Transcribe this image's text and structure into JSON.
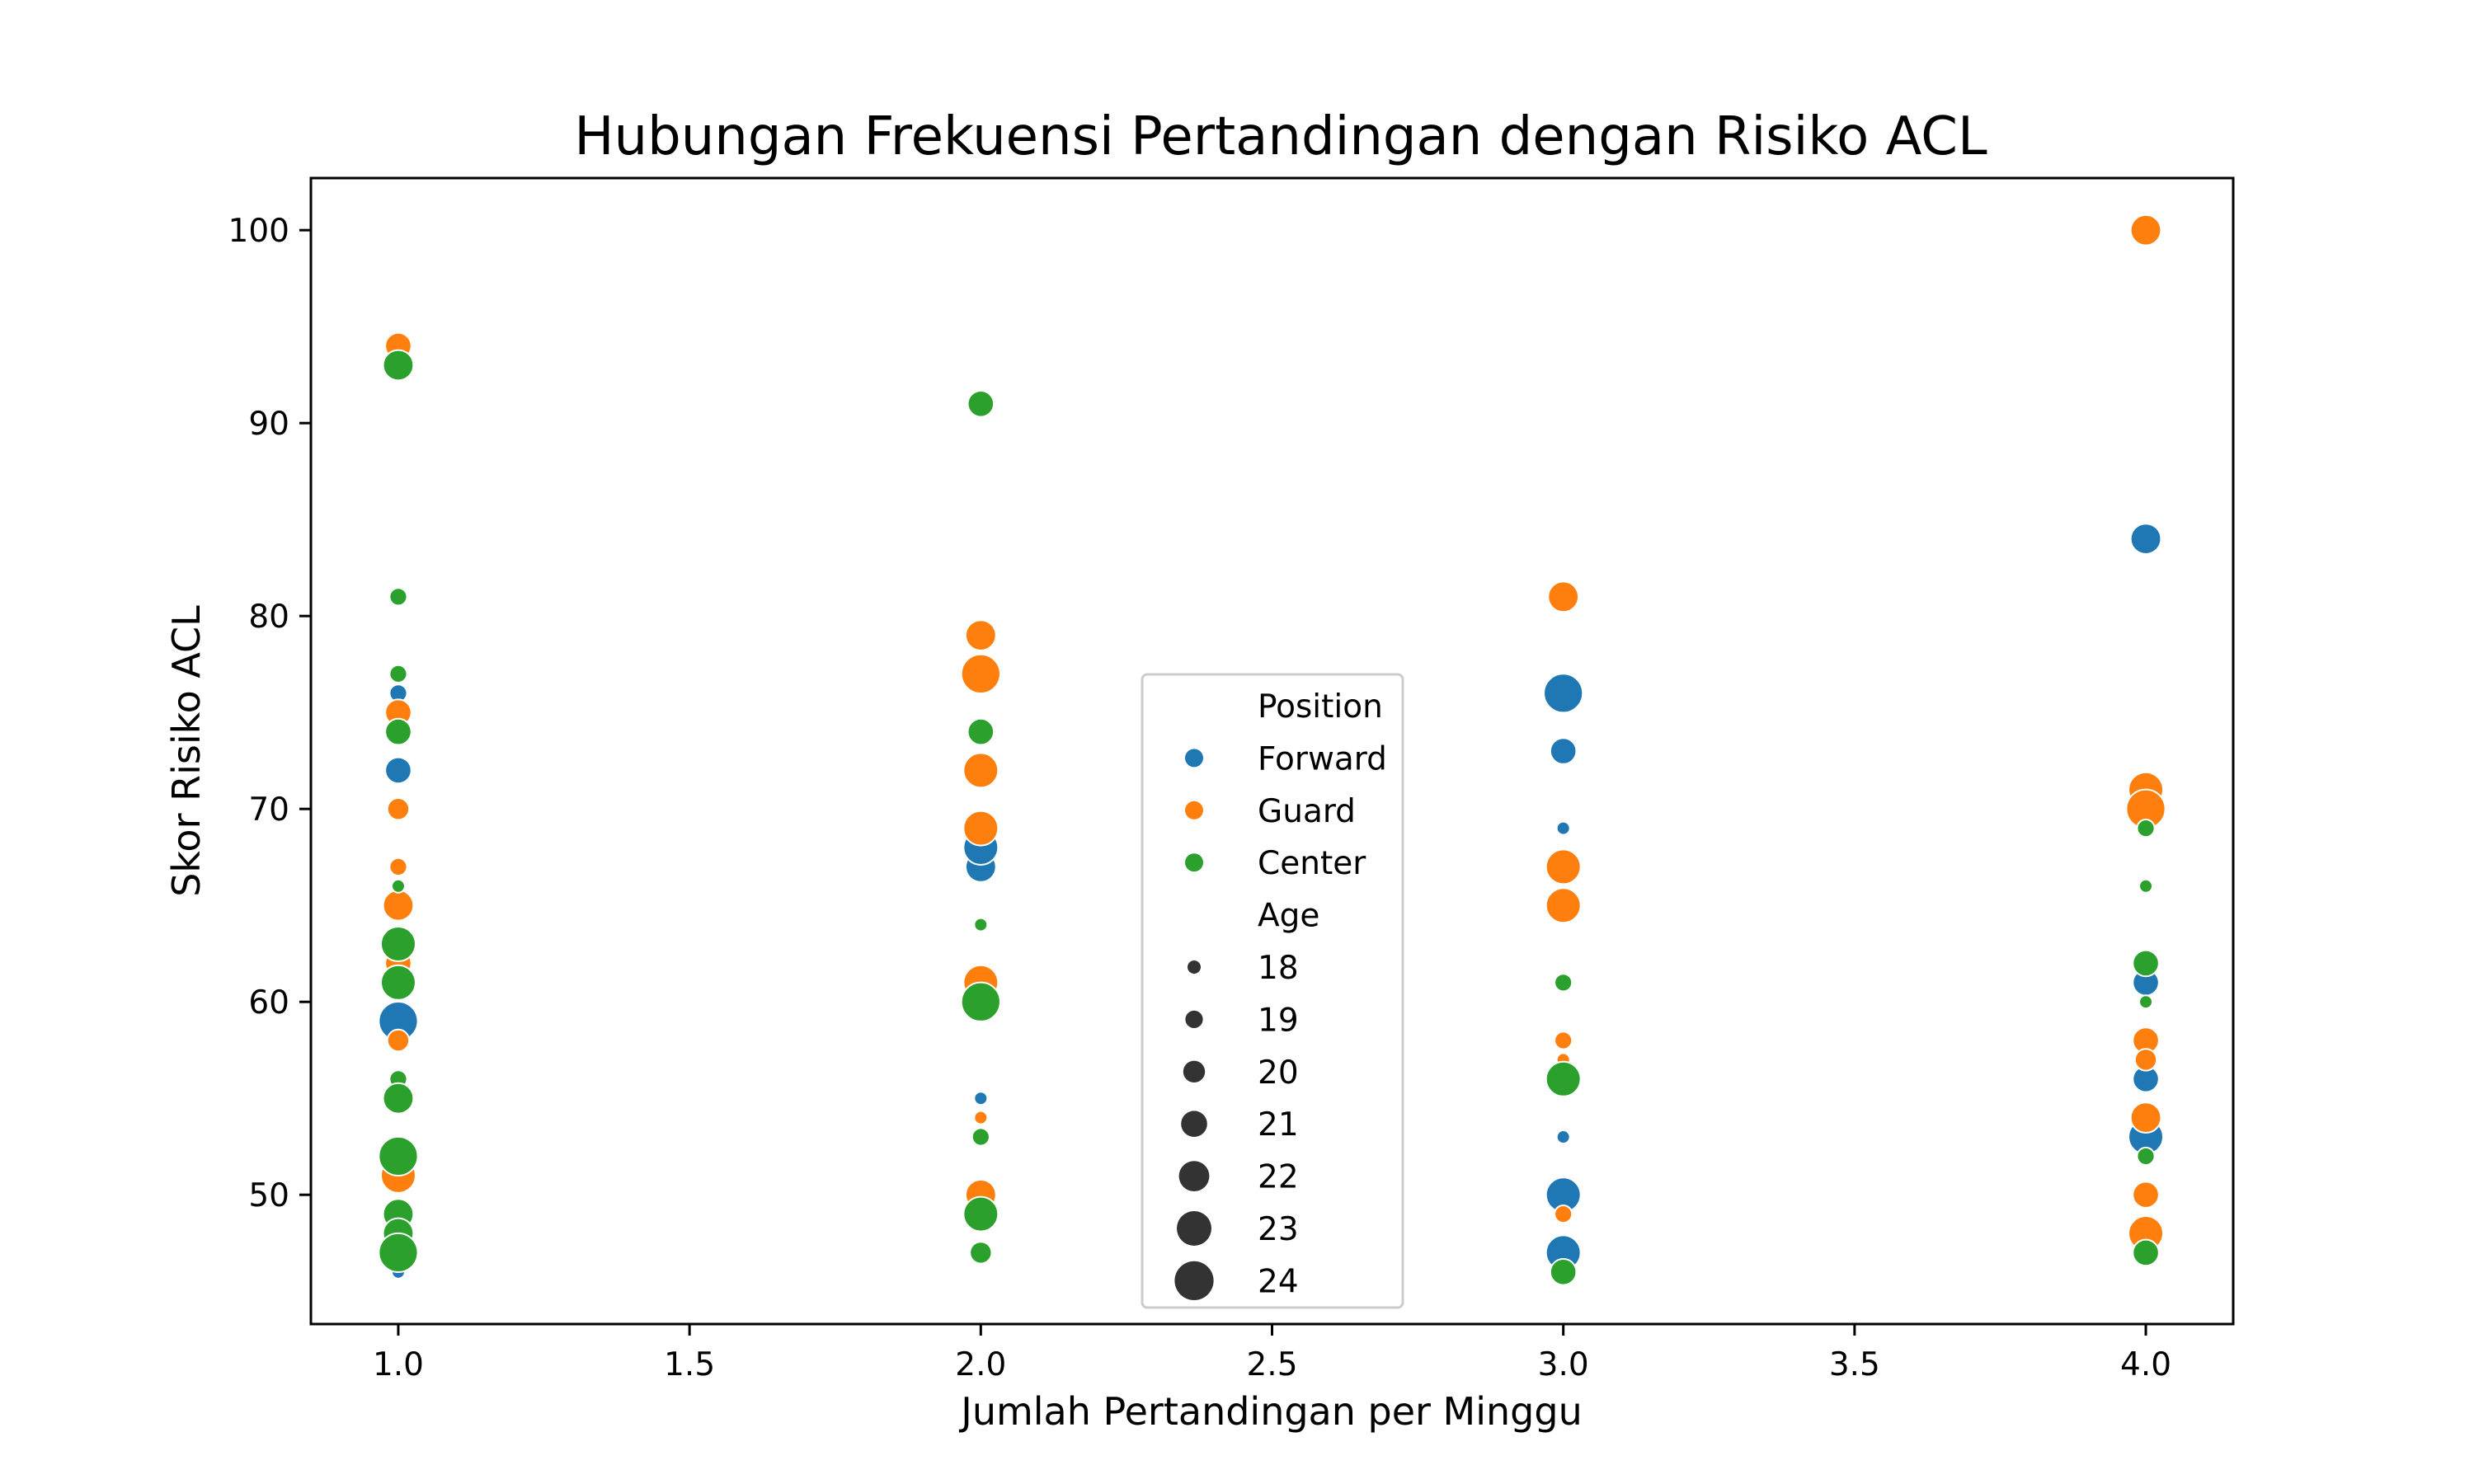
{
  "chart_data": {
    "type": "scatter",
    "title": "Hubungan Frekuensi Pertandingan dengan Risiko ACL",
    "xlabel": "Jumlah Pertandingan per Minggu",
    "ylabel": "Skor Risiko ACL",
    "xlim": [
      0.85,
      4.15
    ],
    "ylim": [
      43.3,
      102.7
    ],
    "xticks": [
      1.0,
      1.5,
      2.0,
      2.5,
      3.0,
      3.5,
      4.0
    ],
    "xtick_labels": [
      "1.0",
      "1.5",
      "2.0",
      "2.5",
      "3.0",
      "3.5",
      "4.0"
    ],
    "yticks": [
      50,
      60,
      70,
      80,
      90,
      100
    ],
    "ytick_labels": [
      "50",
      "60",
      "70",
      "80",
      "90",
      "100"
    ],
    "grid": false,
    "legend": {
      "placement": "center",
      "hue_title": "Position",
      "size_title": "Age",
      "hue_entries": [
        {
          "label": "Forward",
          "color": "#1f77b4"
        },
        {
          "label": "Guard",
          "color": "#ff7f0e"
        },
        {
          "label": "Center",
          "color": "#2ca02c"
        }
      ],
      "size_entries": [
        "18",
        "19",
        "20",
        "21",
        "22",
        "23",
        "24"
      ]
    },
    "series": [
      {
        "name": "Forward",
        "color": "#1f77b4",
        "points": [
          {
            "x": 1,
            "y": 46,
            "age": 18
          },
          {
            "x": 1,
            "y": 62,
            "age": 18
          },
          {
            "x": 1,
            "y": 76,
            "age": 19
          },
          {
            "x": 1,
            "y": 72,
            "age": 21
          },
          {
            "x": 1,
            "y": 59,
            "age": 24
          },
          {
            "x": 2,
            "y": 55,
            "age": 18
          },
          {
            "x": 2,
            "y": 67,
            "age": 22
          },
          {
            "x": 2,
            "y": 68,
            "age": 23
          },
          {
            "x": 3,
            "y": 69,
            "age": 18
          },
          {
            "x": 3,
            "y": 53,
            "age": 18
          },
          {
            "x": 3,
            "y": 73,
            "age": 21
          },
          {
            "x": 3,
            "y": 50,
            "age": 23
          },
          {
            "x": 3,
            "y": 76,
            "age": 24
          },
          {
            "x": 3,
            "y": 47,
            "age": 23
          },
          {
            "x": 4,
            "y": 84,
            "age": 22
          },
          {
            "x": 4,
            "y": 61,
            "age": 21
          },
          {
            "x": 4,
            "y": 56,
            "age": 21
          },
          {
            "x": 4,
            "y": 53,
            "age": 23
          },
          {
            "x": 4,
            "y": 50,
            "age": 19
          }
        ]
      },
      {
        "name": "Guard",
        "color": "#ff7f0e",
        "points": [
          {
            "x": 1,
            "y": 94,
            "age": 21
          },
          {
            "x": 1,
            "y": 75,
            "age": 21
          },
          {
            "x": 1,
            "y": 70,
            "age": 20
          },
          {
            "x": 1,
            "y": 67,
            "age": 19
          },
          {
            "x": 1,
            "y": 65,
            "age": 22
          },
          {
            "x": 1,
            "y": 62,
            "age": 21
          },
          {
            "x": 1,
            "y": 58,
            "age": 20
          },
          {
            "x": 1,
            "y": 51,
            "age": 23
          },
          {
            "x": 2,
            "y": 79,
            "age": 22
          },
          {
            "x": 2,
            "y": 77,
            "age": 24
          },
          {
            "x": 2,
            "y": 72,
            "age": 23
          },
          {
            "x": 2,
            "y": 69,
            "age": 23
          },
          {
            "x": 2,
            "y": 61,
            "age": 23
          },
          {
            "x": 2,
            "y": 54,
            "age": 18
          },
          {
            "x": 2,
            "y": 50,
            "age": 22
          },
          {
            "x": 3,
            "y": 81,
            "age": 22
          },
          {
            "x": 3,
            "y": 67,
            "age": 23
          },
          {
            "x": 3,
            "y": 65,
            "age": 23
          },
          {
            "x": 3,
            "y": 58,
            "age": 19
          },
          {
            "x": 3,
            "y": 57,
            "age": 18
          },
          {
            "x": 3,
            "y": 49,
            "age": 19
          },
          {
            "x": 4,
            "y": 100,
            "age": 22
          },
          {
            "x": 4,
            "y": 71,
            "age": 23
          },
          {
            "x": 4,
            "y": 70,
            "age": 24
          },
          {
            "x": 4,
            "y": 58,
            "age": 21
          },
          {
            "x": 4,
            "y": 57,
            "age": 20
          },
          {
            "x": 4,
            "y": 54,
            "age": 22
          },
          {
            "x": 4,
            "y": 50,
            "age": 21
          },
          {
            "x": 4,
            "y": 48,
            "age": 23
          }
        ]
      },
      {
        "name": "Center",
        "color": "#2ca02c",
        "points": [
          {
            "x": 1,
            "y": 93,
            "age": 22
          },
          {
            "x": 1,
            "y": 81,
            "age": 19
          },
          {
            "x": 1,
            "y": 77,
            "age": 19
          },
          {
            "x": 1,
            "y": 74,
            "age": 21
          },
          {
            "x": 1,
            "y": 66,
            "age": 18
          },
          {
            "x": 1,
            "y": 63,
            "age": 23
          },
          {
            "x": 1,
            "y": 61,
            "age": 23
          },
          {
            "x": 1,
            "y": 56,
            "age": 19
          },
          {
            "x": 1,
            "y": 55,
            "age": 22
          },
          {
            "x": 1,
            "y": 52,
            "age": 24
          },
          {
            "x": 1,
            "y": 49,
            "age": 22
          },
          {
            "x": 1,
            "y": 48,
            "age": 22
          },
          {
            "x": 1,
            "y": 47,
            "age": 24
          },
          {
            "x": 2,
            "y": 91,
            "age": 21
          },
          {
            "x": 2,
            "y": 74,
            "age": 21
          },
          {
            "x": 2,
            "y": 64,
            "age": 18
          },
          {
            "x": 2,
            "y": 60,
            "age": 24
          },
          {
            "x": 2,
            "y": 53,
            "age": 19
          },
          {
            "x": 2,
            "y": 49,
            "age": 23
          },
          {
            "x": 2,
            "y": 47,
            "age": 20
          },
          {
            "x": 3,
            "y": 61,
            "age": 19
          },
          {
            "x": 3,
            "y": 56,
            "age": 23
          },
          {
            "x": 3,
            "y": 46,
            "age": 21
          },
          {
            "x": 4,
            "y": 69,
            "age": 19
          },
          {
            "x": 4,
            "y": 66,
            "age": 18
          },
          {
            "x": 4,
            "y": 62,
            "age": 21
          },
          {
            "x": 4,
            "y": 60,
            "age": 18
          },
          {
            "x": 4,
            "y": 52,
            "age": 19
          },
          {
            "x": 4,
            "y": 47,
            "age": 21
          }
        ]
      }
    ]
  }
}
